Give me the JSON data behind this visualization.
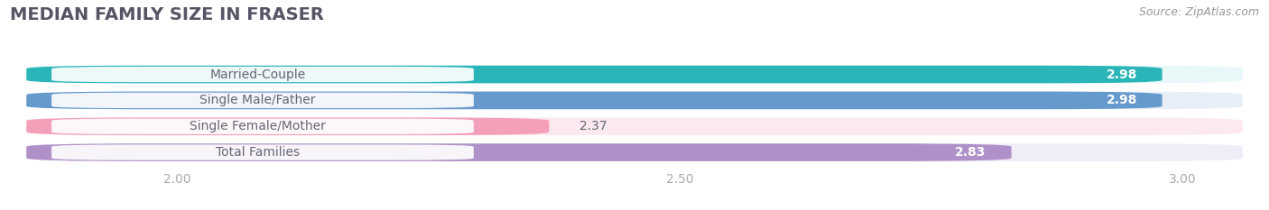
{
  "title": "MEDIAN FAMILY SIZE IN FRASER",
  "source": "Source: ZipAtlas.com",
  "categories": [
    "Married-Couple",
    "Single Male/Father",
    "Single Female/Mother",
    "Total Families"
  ],
  "values": [
    2.98,
    2.98,
    2.37,
    2.83
  ],
  "bar_colors": [
    "#2ab5b8",
    "#6699cc",
    "#f4a0b8",
    "#b090c8"
  ],
  "bar_bg_colors": [
    "#e8f7f8",
    "#e8eef8",
    "#fce8ef",
    "#f0ecf8"
  ],
  "xmin": 1.83,
  "xmax": 3.08,
  "xticks": [
    2.0,
    2.5,
    3.0
  ],
  "title_fontsize": 14,
  "label_fontsize": 10,
  "value_fontsize": 10,
  "source_fontsize": 9,
  "background_color": "#ffffff",
  "title_color": "#555566",
  "label_text_color": "#666677",
  "source_color": "#999999",
  "tick_color": "#aaaaaa"
}
